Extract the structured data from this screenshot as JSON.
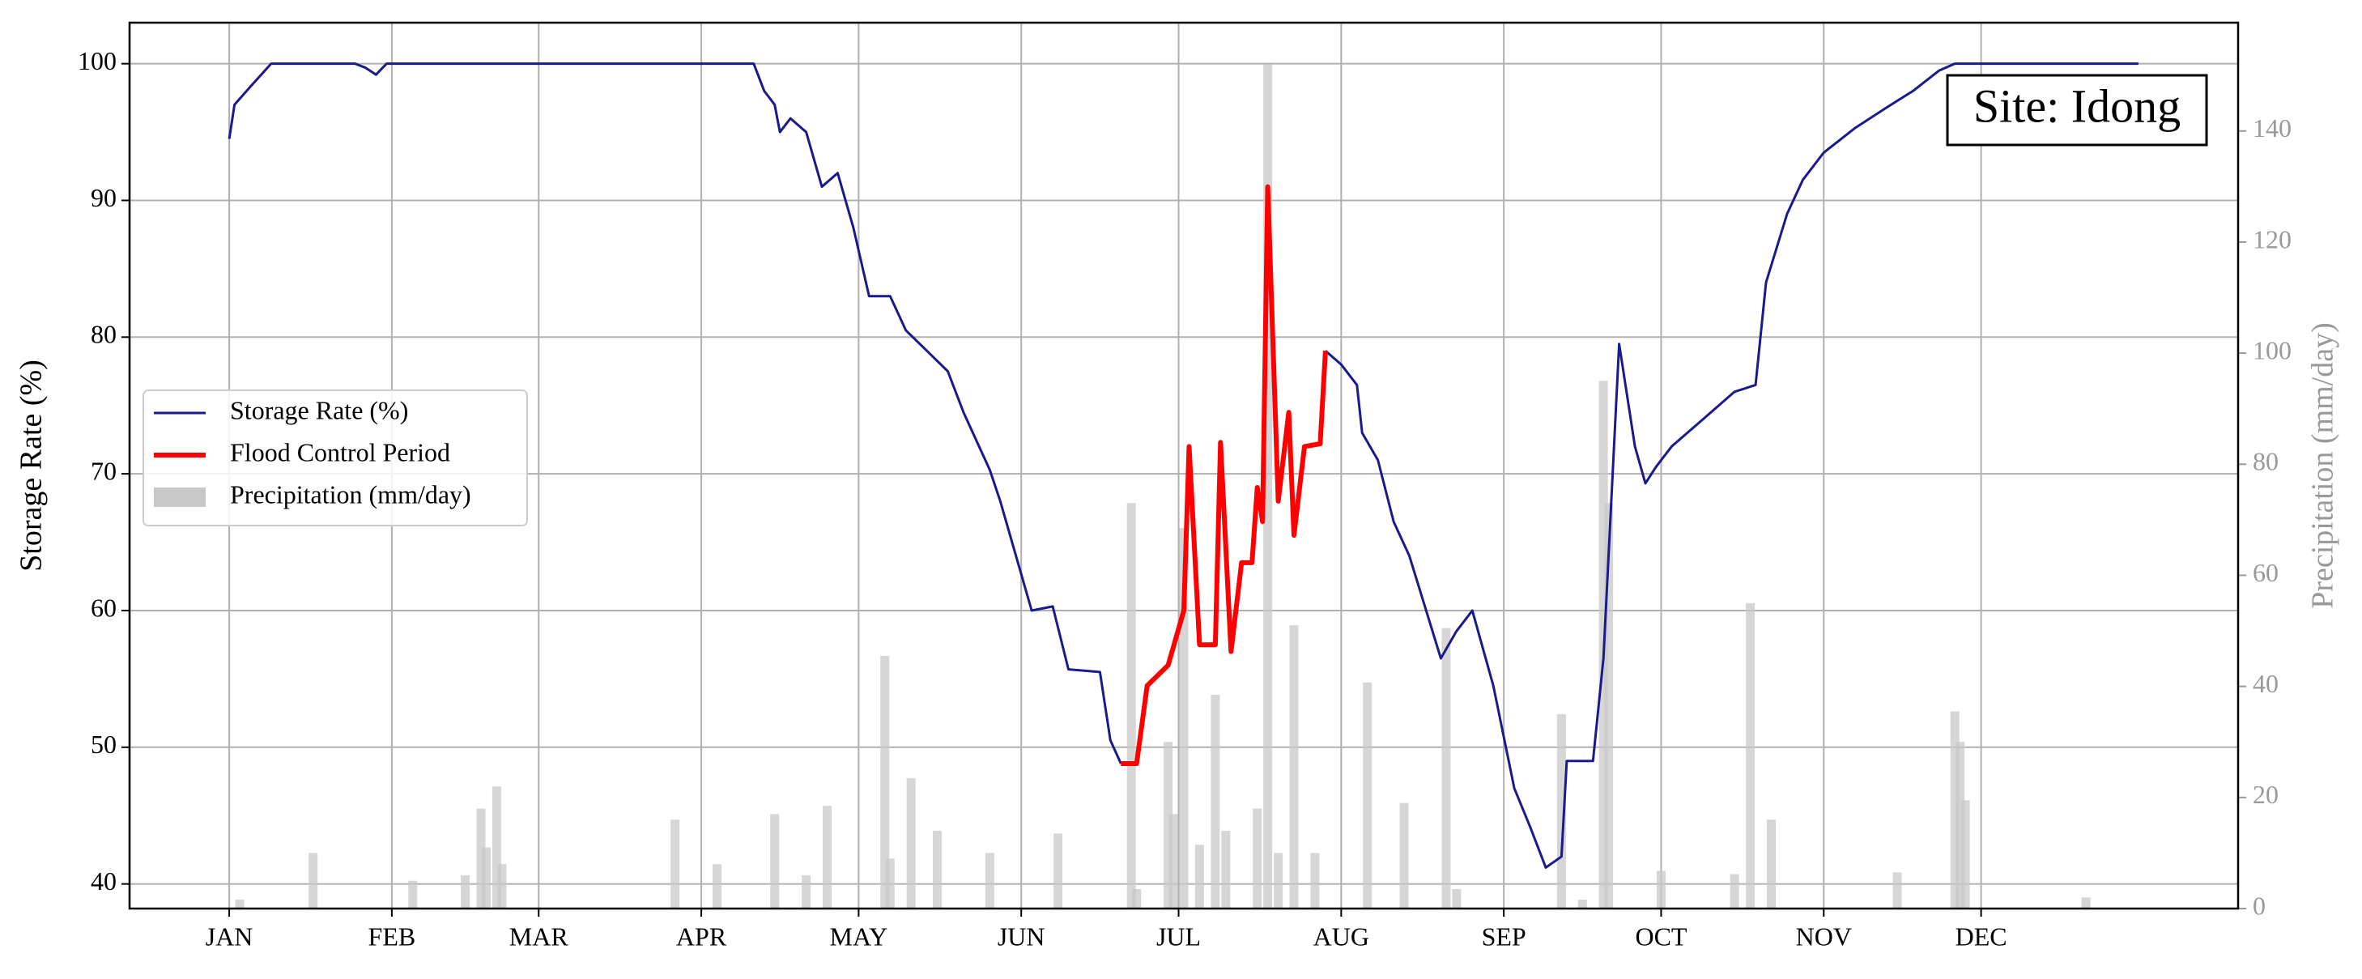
{
  "chart_data": {
    "type": "line",
    "annotation": "Site: Idong",
    "ylabel": "Storage Rate (%)",
    "y2label": "Precipitation (mm/day)",
    "xlim": [
      -18,
      384
    ],
    "xticks": [
      {
        "value": 1,
        "label": "JAN"
      },
      {
        "value": 32,
        "label": "FEB"
      },
      {
        "value": 60,
        "label": "MAR"
      },
      {
        "value": 91,
        "label": "APR"
      },
      {
        "value": 121,
        "label": "MAY"
      },
      {
        "value": 152,
        "label": "JUN"
      },
      {
        "value": 182,
        "label": "JUL"
      },
      {
        "value": 213,
        "label": "AUG"
      },
      {
        "value": 244,
        "label": "SEP"
      },
      {
        "value": 274,
        "label": "OCT"
      },
      {
        "value": 305,
        "label": "NOV"
      },
      {
        "value": 335,
        "label": "DEC"
      }
    ],
    "ylim": [
      38.2,
      103
    ],
    "yticks": [
      40,
      50,
      60,
      70,
      80,
      90,
      100
    ],
    "y2lim": [
      0,
      159.5
    ],
    "y2ticks": [
      0,
      20,
      40,
      60,
      80,
      100,
      120,
      140
    ],
    "grid": true,
    "legend": "center left",
    "series": [
      {
        "name": "Storage Rate (%)",
        "type": "line",
        "color": "#1a1a8c",
        "x": [
          1,
          2,
          5,
          9,
          15,
          25,
          27,
          29,
          31,
          50,
          98,
          101,
          103,
          105,
          106,
          108,
          111,
          114,
          117,
          120,
          123,
          127,
          130,
          134,
          138,
          141,
          146,
          148,
          151,
          154,
          158,
          161,
          167,
          169,
          171,
          null,
          210,
          213,
          216,
          217,
          220,
          223,
          226,
          232,
          235,
          238,
          242,
          246,
          249,
          252,
          255,
          256,
          261,
          263,
          266,
          269,
          271,
          273,
          276,
          282,
          288,
          292,
          294,
          298,
          301,
          305,
          311,
          317,
          322,
          327,
          330,
          365
        ],
        "values": [
          94.5,
          97,
          98.3,
          100,
          100,
          100,
          99.7,
          99.2,
          100,
          100,
          100,
          100,
          98,
          97,
          95,
          96,
          95,
          91,
          92,
          88,
          83,
          83,
          80.5,
          79,
          77.5,
          74.5,
          70.3,
          68,
          64,
          60,
          60.3,
          55.7,
          55.5,
          50.5,
          48.8,
          null,
          79,
          78,
          76.5,
          73,
          71,
          66.5,
          64,
          56.5,
          58.5,
          60,
          54.5,
          47,
          44.2,
          41.2,
          42,
          49,
          49,
          56.5,
          79.5,
          72,
          69.3,
          70.5,
          72,
          74,
          76,
          76.5,
          84,
          89,
          91.5,
          93.5,
          95.3,
          96.8,
          98,
          99.5,
          100,
          100
        ]
      },
      {
        "name": "Flood Control Period",
        "type": "line",
        "color": "#ff0000",
        "x": [
          171,
          174,
          176,
          180,
          183,
          184,
          186,
          189,
          190,
          192,
          194,
          196,
          197,
          198,
          199,
          201,
          203,
          204,
          206,
          209,
          210
        ],
        "values": [
          48.8,
          48.8,
          54.5,
          56,
          60,
          72,
          57.5,
          57.5,
          72.3,
          57,
          63.5,
          63.5,
          69,
          66.5,
          91,
          68,
          74.5,
          65.5,
          72,
          72.2,
          79
        ]
      },
      {
        "name": "Precipitation (mm/day)",
        "type": "bar",
        "axis": "y2",
        "color": "#c8c8c8",
        "x": [
          3,
          17,
          36,
          46,
          49,
          50,
          52,
          53,
          86,
          94,
          105,
          111,
          115,
          126,
          127,
          131,
          136,
          146,
          159,
          173,
          174,
          180,
          181,
          183,
          186,
          189,
          191,
          197,
          199,
          201,
          204,
          208,
          218,
          225,
          233,
          235,
          255,
          259,
          263,
          264,
          274,
          288,
          291,
          295,
          319,
          330,
          331,
          332,
          355
        ],
        "values": [
          1.6,
          10,
          5,
          6,
          18,
          11,
          22,
          8,
          16,
          8,
          17,
          6,
          18.5,
          45.5,
          9,
          23.5,
          14,
          10,
          13.5,
          73,
          3.5,
          30,
          17,
          68.5,
          11.5,
          38.5,
          14,
          18,
          152,
          10,
          51,
          10,
          40.7,
          19,
          50.5,
          3.5,
          35,
          1.6,
          95,
          73,
          6.8,
          6.2,
          55,
          16,
          6.5,
          35.5,
          30,
          19.5,
          2
        ]
      }
    ]
  }
}
